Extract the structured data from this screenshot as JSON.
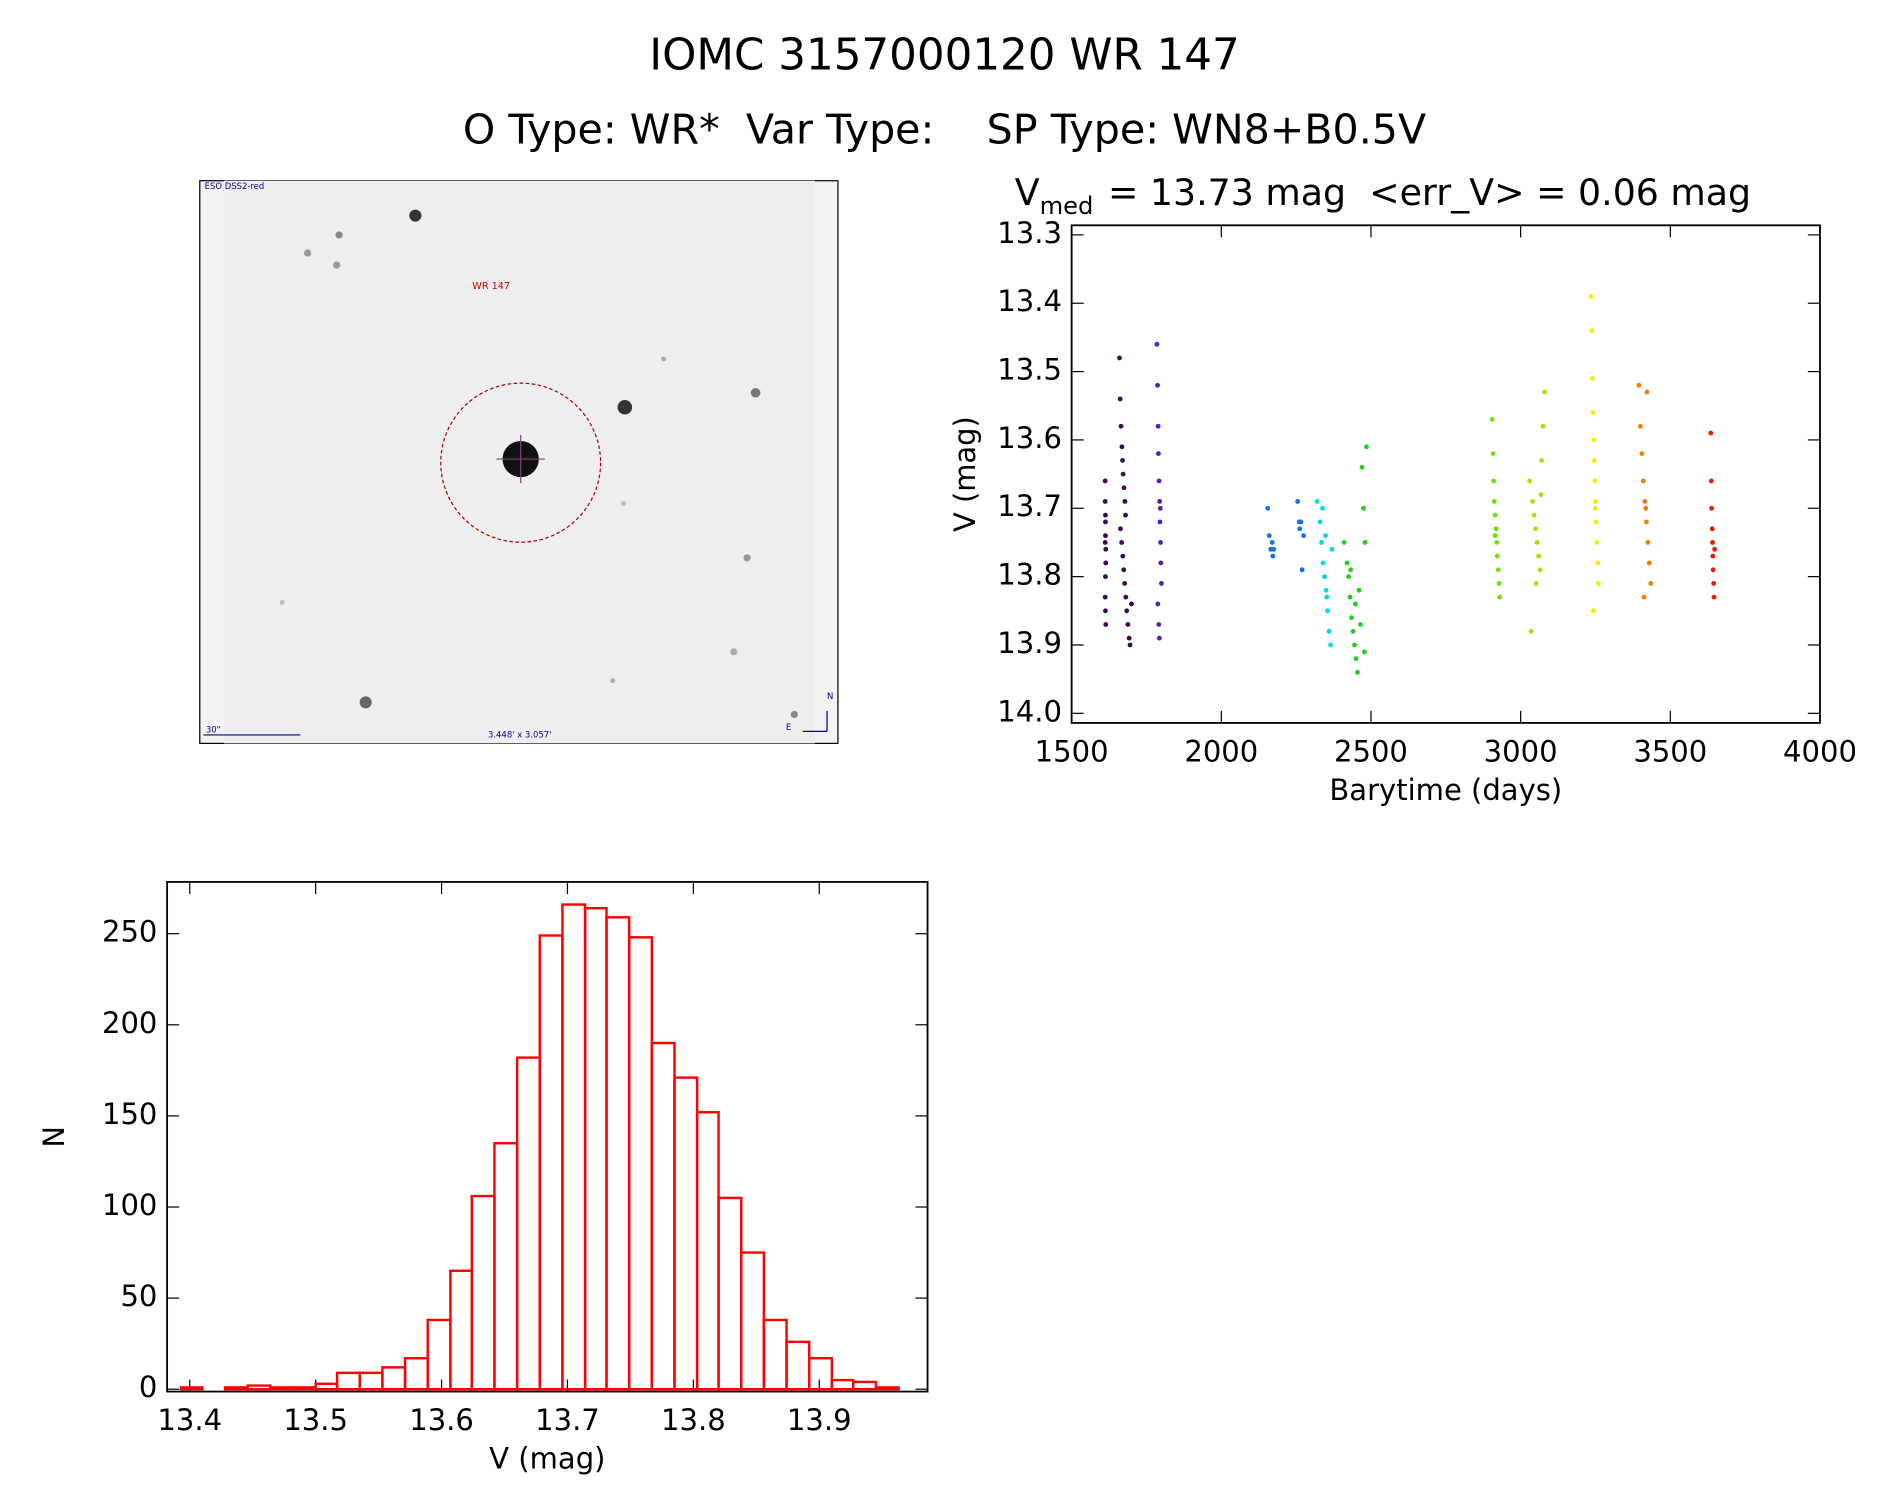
{
  "title": "IOMC 3157000120   WR 147",
  "subtitle": "O Type: WR*  Var Type:    SP Type: WN8+B0.5V",
  "image": {
    "survey": "ESO DSS2-red",
    "target": "WR 147",
    "scale": "30\"",
    "field": "3.448' x 3.057'",
    "north": "N",
    "east": "E"
  },
  "chart_data": [
    {
      "type": "scatter",
      "title": "V",
      "title_subscript": "med",
      "title_rest": "= 13.73 mag  <err_V> = 0.06 mag",
      "x_label": "Barytime (days)",
      "y_label": "V (mag)",
      "xlim": [
        1500,
        4000
      ],
      "xticks": [
        1500,
        2000,
        2500,
        3000,
        3500,
        4000
      ],
      "ylim": [
        14.014,
        13.286
      ],
      "yticks": [
        13.3,
        13.4,
        13.5,
        13.6,
        13.7,
        13.8,
        13.9,
        {
          "value": 14,
          "label": "14.0"
        }
      ],
      "series": [
        {
          "color": "#3c0a50",
          "x": [
            1612,
            1612,
            1613,
            1613,
            1614,
            1614,
            1613,
            1612,
            1613,
            1614,
            1613,
            1612,
            1660,
            1662,
            1665,
            1668,
            1670,
            1672,
            1675,
            1678,
            1680,
            1663,
            1667,
            1671,
            1674,
            1677,
            1681,
            1684,
            1688,
            1692,
            1695,
            1700
          ],
          "y": [
            13.66,
            13.69,
            13.72,
            13.74,
            13.76,
            13.78,
            13.8,
            13.83,
            13.85,
            13.87,
            13.71,
            13.75,
            13.48,
            13.54,
            13.58,
            13.61,
            13.63,
            13.65,
            13.67,
            13.69,
            13.71,
            13.73,
            13.75,
            13.77,
            13.79,
            13.81,
            13.83,
            13.85,
            13.87,
            13.89,
            13.9,
            13.84
          ]
        },
        {
          "color": "#5020b8",
          "x": [
            1785,
            1787,
            1789,
            1790,
            1792,
            1794,
            1795,
            1797,
            1798,
            1800,
            1788,
            1791,
            1793,
            1796
          ],
          "y": [
            13.46,
            13.52,
            13.58,
            13.62,
            13.66,
            13.69,
            13.72,
            13.75,
            13.78,
            13.81,
            13.84,
            13.87,
            13.89,
            13.7
          ]
        },
        {
          "color": "#1870e0",
          "x": [
            2155,
            2160,
            2165,
            2170,
            2172,
            2175,
            2255,
            2260,
            2262,
            2266,
            2270,
            2275
          ],
          "y": [
            13.7,
            13.74,
            13.76,
            13.75,
            13.77,
            13.76,
            13.69,
            13.72,
            13.73,
            13.72,
            13.79,
            13.74
          ]
        },
        {
          "color": "#00d8e8",
          "x": [
            2320,
            2330,
            2335,
            2340,
            2345,
            2350,
            2355,
            2360,
            2365,
            2370,
            2338,
            2352,
            2348
          ],
          "y": [
            13.69,
            13.72,
            13.75,
            13.78,
            13.8,
            13.82,
            13.85,
            13.88,
            13.9,
            13.76,
            13.7,
            13.83,
            13.74
          ]
        },
        {
          "color": "#20d020",
          "x": [
            2410,
            2420,
            2425,
            2430,
            2435,
            2440,
            2445,
            2450,
            2455,
            2460,
            2470,
            2475,
            2480,
            2485,
            2432,
            2448,
            2465,
            2478
          ],
          "y": [
            13.75,
            13.78,
            13.8,
            13.83,
            13.86,
            13.88,
            13.9,
            13.92,
            13.94,
            13.82,
            13.64,
            13.7,
            13.75,
            13.61,
            13.79,
            13.84,
            13.87,
            13.91
          ]
        },
        {
          "color": "#70e010",
          "x": [
            2905,
            2908,
            2910,
            2912,
            2915,
            2918,
            2920,
            2922,
            2925,
            2928,
            2930,
            2915
          ],
          "y": [
            13.57,
            13.62,
            13.66,
            13.69,
            13.71,
            13.73,
            13.75,
            13.77,
            13.79,
            13.81,
            13.83,
            13.74
          ]
        },
        {
          "color": "#a8e010",
          "x": [
            3030,
            3040,
            3045,
            3050,
            3055,
            3060,
            3065,
            3070,
            3075,
            3080,
            3035,
            3052,
            3068
          ],
          "y": [
            13.66,
            13.69,
            13.71,
            13.73,
            13.75,
            13.77,
            13.79,
            13.63,
            13.58,
            13.53,
            13.88,
            13.81,
            13.68
          ]
        },
        {
          "color": "#f0f000",
          "x": [
            3235,
            3238,
            3240,
            3242,
            3244,
            3246,
            3248,
            3250,
            3252,
            3255,
            3258,
            3260,
            3243,
            3249
          ],
          "y": [
            13.39,
            13.44,
            13.51,
            13.56,
            13.6,
            13.63,
            13.66,
            13.69,
            13.72,
            13.75,
            13.78,
            13.81,
            13.85,
            13.7
          ]
        },
        {
          "color": "#f08000",
          "x": [
            3395,
            3400,
            3405,
            3410,
            3415,
            3420,
            3425,
            3430,
            3435,
            3412,
            3422,
            3418
          ],
          "y": [
            13.52,
            13.58,
            13.62,
            13.66,
            13.69,
            13.72,
            13.75,
            13.78,
            13.81,
            13.83,
            13.53,
            13.7
          ]
        },
        {
          "color": "#e02000",
          "x": [
            3635,
            3637,
            3638,
            3640,
            3641,
            3642,
            3643,
            3645,
            3646,
            3648
          ],
          "y": [
            13.59,
            13.66,
            13.7,
            13.73,
            13.75,
            13.77,
            13.79,
            13.81,
            13.83,
            13.76
          ]
        }
      ]
    },
    {
      "type": "histogram",
      "x_label": "V (mag)",
      "y_label": "N",
      "color": "#ff0000",
      "xlim": [
        13.382,
        13.986
      ],
      "xticks": [
        13.4,
        13.5,
        13.6,
        13.7,
        13.8,
        13.9
      ],
      "ylim": [
        -1.3,
        278.4
      ],
      "yticks": [
        0,
        50,
        100,
        150,
        200,
        250
      ],
      "bins": [
        13.393,
        13.41,
        13.428,
        13.446,
        13.464,
        13.482,
        13.5,
        13.517,
        13.535,
        13.553,
        13.571,
        13.589,
        13.607,
        13.624,
        13.642,
        13.66,
        13.678,
        13.696,
        13.714,
        13.731,
        13.749,
        13.767,
        13.785,
        13.803,
        13.82,
        13.838,
        13.856,
        13.874,
        13.892,
        13.91,
        13.927,
        13.945,
        13.963
      ],
      "values": [
        1,
        0,
        1,
        2,
        1,
        1,
        3,
        9,
        9,
        12,
        17,
        38,
        65,
        106,
        135,
        182,
        249,
        266,
        264,
        259,
        248,
        190,
        171,
        152,
        105,
        75,
        38,
        26,
        17,
        5,
        4,
        1
      ]
    }
  ]
}
